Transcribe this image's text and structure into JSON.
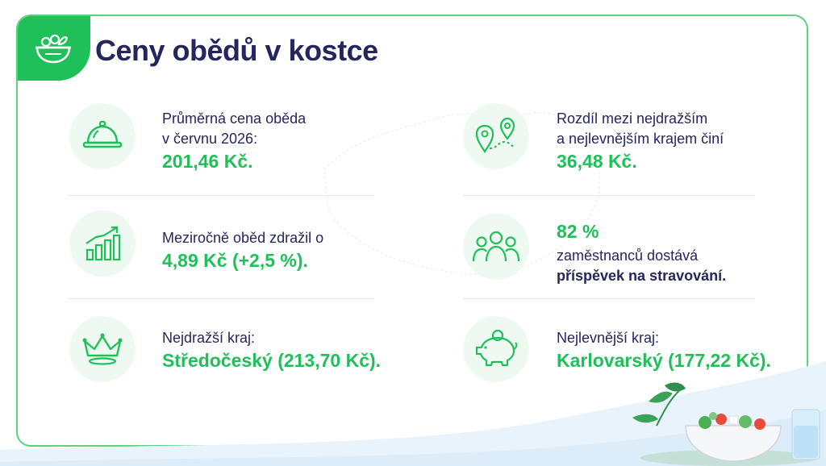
{
  "title": "Ceny obědů v kostce",
  "colors": {
    "accent": "#1fbf5a",
    "text": "#26265e",
    "border": "#5ed17e"
  },
  "icons": {
    "badge": "salad-bowl-icon",
    "avg": "cloche-icon",
    "diff": "route-pins-icon",
    "growth": "growth-chart-icon",
    "people": "people-icon",
    "crown": "crown-icon",
    "piggy": "piggy-bank-icon"
  },
  "left": {
    "avg": {
      "line1": "Průměrná cena oběda",
      "line2": "v červnu 2026:",
      "value": "201,46 Kč."
    },
    "growth": {
      "line1": "Meziročně oběd zdražil o",
      "value": "4,89 Kč (+2,5 %)."
    },
    "expensive": {
      "line1": "Nejdražší kraj:",
      "value": "Středočeský (213,70 Kč)."
    }
  },
  "right": {
    "diff": {
      "line1": "Rozdíl mezi nejdražším",
      "line2": "a nejlevnějším krajem činí",
      "value": "36,48 Kč."
    },
    "employees": {
      "value": "82 %",
      "line1": "zaměstnanců dostává",
      "line2": "příspěvek na stravování."
    },
    "cheap": {
      "line1": "Nejlevnější kraj:",
      "value": "Karlovarský (177,22 Kč)."
    }
  }
}
